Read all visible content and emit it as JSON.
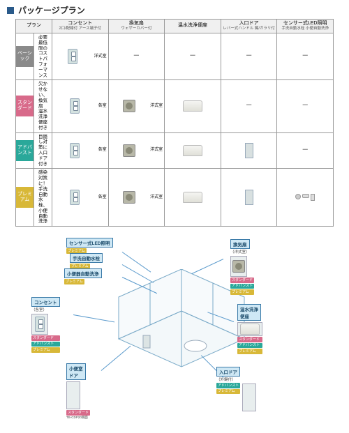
{
  "header": {
    "title": "パッケージプラン"
  },
  "columns": {
    "plan": "プラン",
    "outlet": {
      "main": "コンセント",
      "sub": "2口/配線付\nアース端子付"
    },
    "fan": {
      "main": "換気扇",
      "sub": "ウェザーカバー付"
    },
    "washlet": "温水洗浄便座",
    "door": {
      "main": "入口ドア",
      "sub": "レバー式ハンドル\n鍵/ガラリ付"
    },
    "led": {
      "main": "センサー式LED照明",
      "sub": "手洗自動水栓\n小便自動洗浄"
    }
  },
  "plans": [
    {
      "name": "ベーシック",
      "color": "#8a8a8a",
      "desc": "必要最低限の\nコストパフォーマンス",
      "outlet": "洋式室",
      "fan": "－",
      "washlet": "－",
      "door": "－",
      "led": "－"
    },
    {
      "name": "スタンダード",
      "color": "#d86a8a",
      "desc": "欠かせない、換気扇\n温水洗浄便座付き",
      "outlet": "各室",
      "fan": "洋式室",
      "washlet": true,
      "door": "－",
      "led": "－"
    },
    {
      "name": "アドバンスト",
      "color": "#2aa89a",
      "desc": "目隠し対策に\n入口ドア付き",
      "outlet": "各室",
      "fan": "洋式室",
      "washlet": true,
      "door": true,
      "led": "－"
    },
    {
      "name": "プレミアム",
      "color": "#d8b838",
      "desc": "感染対策に！\n手洗自動水栓、小便自動洗浄",
      "outlet": "各室",
      "fan": "洋式室",
      "washlet": true,
      "door": true,
      "led": true
    }
  ],
  "diagram": {
    "labels": {
      "led": {
        "text": "センサー式LED照明",
        "tags": [
          "プレミアム"
        ]
      },
      "faucet": {
        "text": "手洗自動水栓",
        "tags": [
          "プレミアム"
        ]
      },
      "urinal": {
        "text": "小便器自動洗浄",
        "tags": [
          "プレミアム"
        ]
      },
      "outlet": {
        "text": "コンセント",
        "sub": "（各室）",
        "tags": [
          "スタンダード",
          "アドバンスト",
          "プレミアム"
        ]
      },
      "sdoor": {
        "text": "小便室\nドア",
        "tags": [
          "スタンダード"
        ],
        "model": "TB-CDP20側面"
      },
      "fan": {
        "text": "換気扇",
        "sub": "（洋式室）",
        "tags": [
          "スタンダード",
          "アドバンスト",
          "プレミアム"
        ]
      },
      "washlet": {
        "text": "温水洗浄\n便座",
        "tags": [
          "スタンダード",
          "アドバンスト",
          "プレミアム"
        ]
      },
      "edoor": {
        "text": "入口ドア",
        "sub": "（外鍵付）",
        "tags": [
          "アドバンスト",
          "プレミアム"
        ]
      }
    }
  },
  "tag_colors": {
    "ベーシック": "#8a8a8a",
    "スタンダード": "#d86a8a",
    "アドバンスト": "#2aa89a",
    "プレミアム": "#d8b838"
  }
}
